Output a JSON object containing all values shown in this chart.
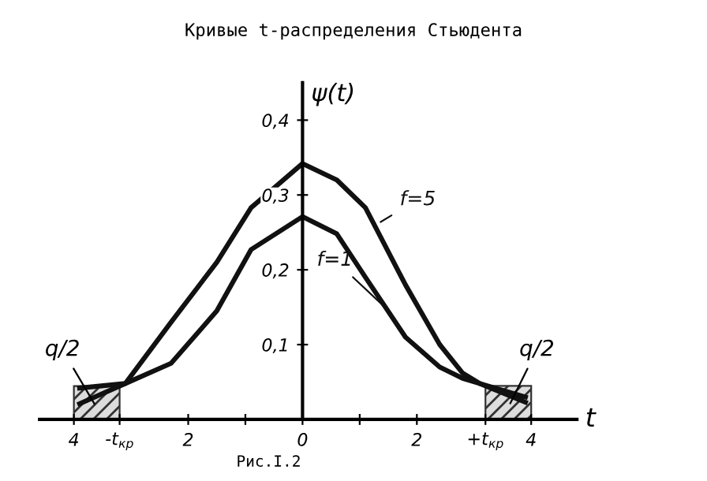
{
  "chart_data": {
    "type": "line",
    "title": "Кривые t-распределения Стьюдента",
    "xlabel": "t",
    "ylabel": "ψ(t)",
    "x": [
      -3.9,
      -3.1,
      -2.3,
      -1.5,
      -0.9,
      0,
      0.6,
      1.1,
      1.8,
      2.4,
      2.8,
      3.1,
      3.9
    ],
    "series": [
      {
        "name": "f=5",
        "color": "#111111",
        "values": [
          0.042,
          0.048,
          0.13,
          0.21,
          0.283,
          0.342,
          0.32,
          0.283,
          0.18,
          0.1,
          0.062,
          0.048,
          0.03
        ]
      },
      {
        "name": "f=1",
        "color": "#111111",
        "values": [
          0.021,
          0.048,
          0.075,
          0.145,
          0.227,
          0.271,
          0.248,
          0.19,
          0.11,
          0.07,
          0.055,
          0.048,
          0.023
        ]
      }
    ],
    "bands": [
      {
        "axis": "x",
        "from": -4,
        "to": -3.2,
        "label": "q/2",
        "color": "#333333"
      },
      {
        "axis": "x",
        "from": 3.2,
        "to": 4,
        "label": "q/2",
        "color": "#333333"
      }
    ],
    "xlim": [
      -4.6,
      4.8
    ],
    "ylim": [
      0,
      0.45
    ],
    "xticks": [
      {
        "value": -4,
        "label": "4"
      },
      {
        "value": -3.2,
        "label": "-t$_{кр}$"
      },
      {
        "value": -2,
        "label": "2"
      },
      {
        "value": -1,
        "label": null
      },
      0,
      {
        "value": 1,
        "label": null
      },
      2,
      {
        "value": 3.2,
        "label": "+t$_{кр}$"
      },
      4
    ],
    "yticks": [
      {
        "value": 0.1,
        "label": "0,1"
      },
      {
        "value": 0.2,
        "label": "0,2"
      },
      {
        "value": 0.3,
        "label": "0,3"
      },
      {
        "value": 0.4,
        "label": "0,4"
      }
    ],
    "annotations": [
      "Рис.I.2"
    ],
    "grid": false,
    "legend": false,
    "marker": "none",
    "line_style": "solid"
  }
}
